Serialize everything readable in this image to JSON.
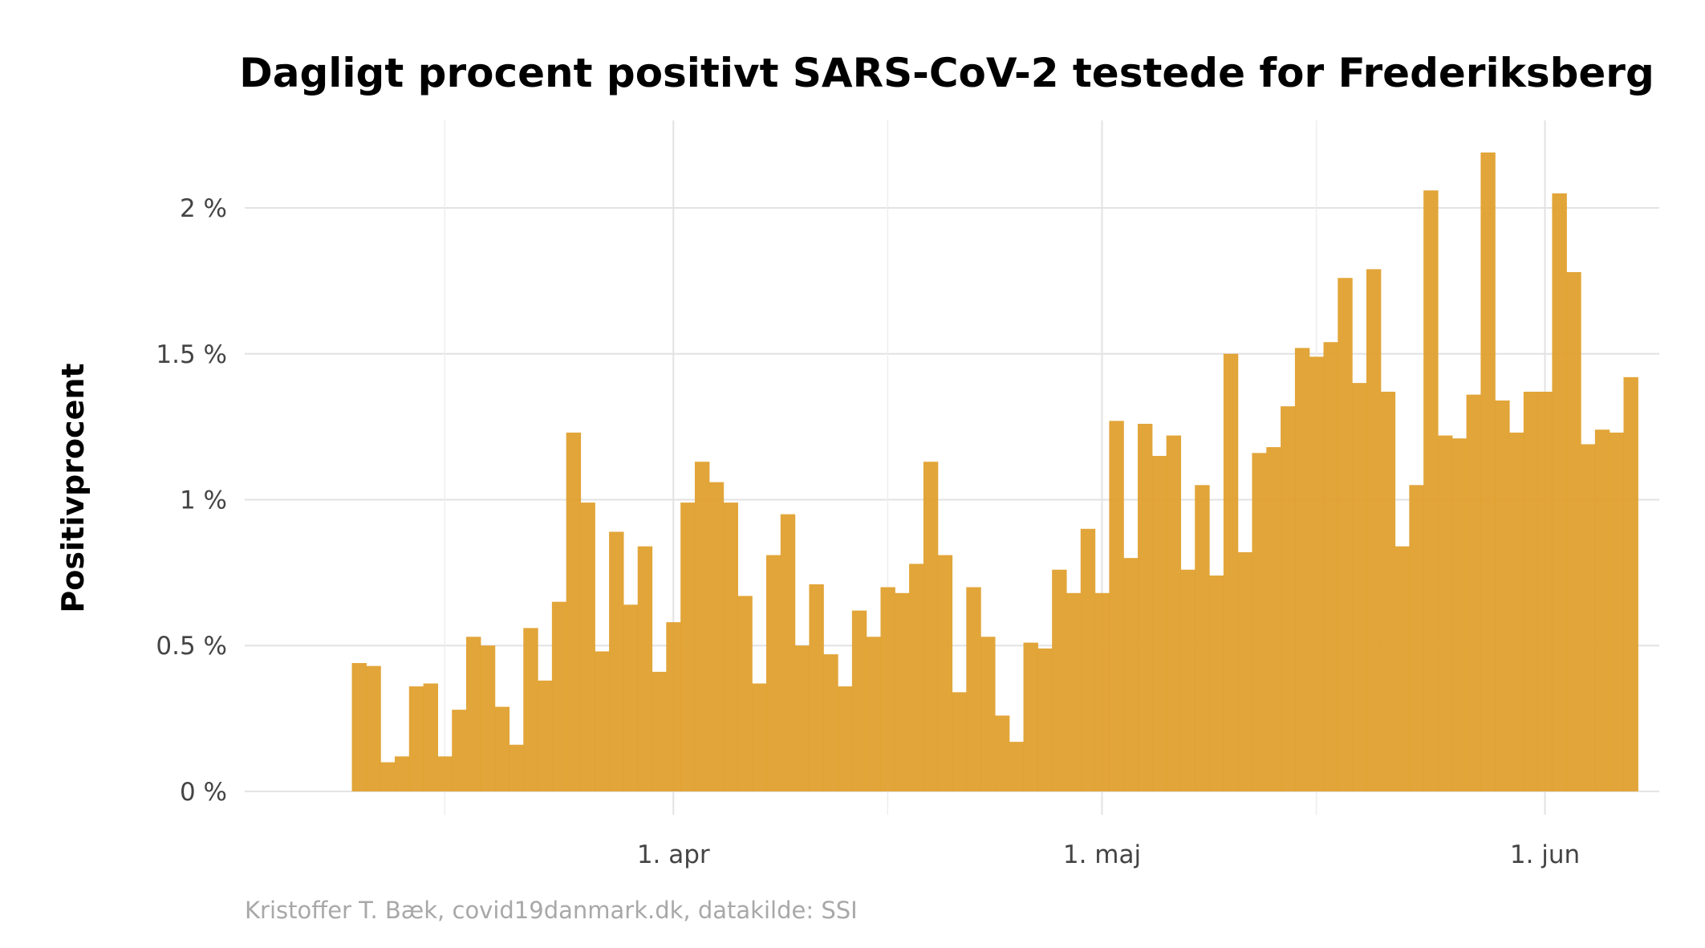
{
  "chart_data": {
    "type": "bar",
    "title": "Dagligt procent positivt SARS-CoV-2 testede for Frederiksberg",
    "xlabel": "",
    "ylabel": "Positivprocent",
    "caption": "Kristoffer T. Bæk, covid19danmark.dk, datakilde: SSI",
    "x_start_date": "2021-03-10",
    "x_ticks": [
      {
        "date": "2021-04-01",
        "label": "1. apr"
      },
      {
        "date": "2021-05-01",
        "label": "1. maj"
      },
      {
        "date": "2021-06-01",
        "label": "1. jun"
      }
    ],
    "x_minor_ticks": [
      "2021-03-16",
      "2021-04-16",
      "2021-05-16"
    ],
    "y_ticks": [
      {
        "value": 0,
        "label": "0 %"
      },
      {
        "value": 0.5,
        "label": "0.5 %"
      },
      {
        "value": 1,
        "label": "1 %"
      },
      {
        "value": 1.5,
        "label": "1.5 %"
      },
      {
        "value": 2,
        "label": "2 %"
      }
    ],
    "ylim": [
      -0.08,
      2.3
    ],
    "xlim": [
      "2021-03-02",
      "2021-06-09"
    ],
    "grid": true,
    "bar_color": "#E0A02E",
    "values": [
      0.44,
      0.43,
      0.1,
      0.12,
      0.36,
      0.37,
      0.12,
      0.28,
      0.53,
      0.5,
      0.29,
      0.16,
      0.56,
      0.38,
      0.65,
      1.23,
      0.99,
      0.48,
      0.89,
      0.64,
      0.84,
      0.41,
      0.58,
      0.99,
      1.13,
      1.06,
      0.99,
      0.67,
      0.37,
      0.81,
      0.95,
      0.5,
      0.71,
      0.47,
      0.36,
      0.62,
      0.53,
      0.7,
      0.68,
      0.78,
      1.13,
      0.81,
      0.34,
      0.7,
      0.53,
      0.26,
      0.17,
      0.51,
      0.49,
      0.76,
      0.68,
      0.9,
      0.68,
      1.27,
      0.8,
      1.26,
      1.15,
      1.22,
      0.76,
      1.05,
      0.74,
      1.5,
      0.82,
      1.16,
      1.18,
      1.32,
      1.52,
      1.49,
      1.54,
      1.76,
      1.4,
      1.79,
      1.37,
      0.84,
      1.05,
      2.06,
      1.22,
      1.21,
      1.36,
      2.19,
      1.34,
      1.23,
      1.37,
      1.37,
      2.05,
      1.78,
      1.19,
      1.24,
      1.23,
      1.42
    ]
  }
}
